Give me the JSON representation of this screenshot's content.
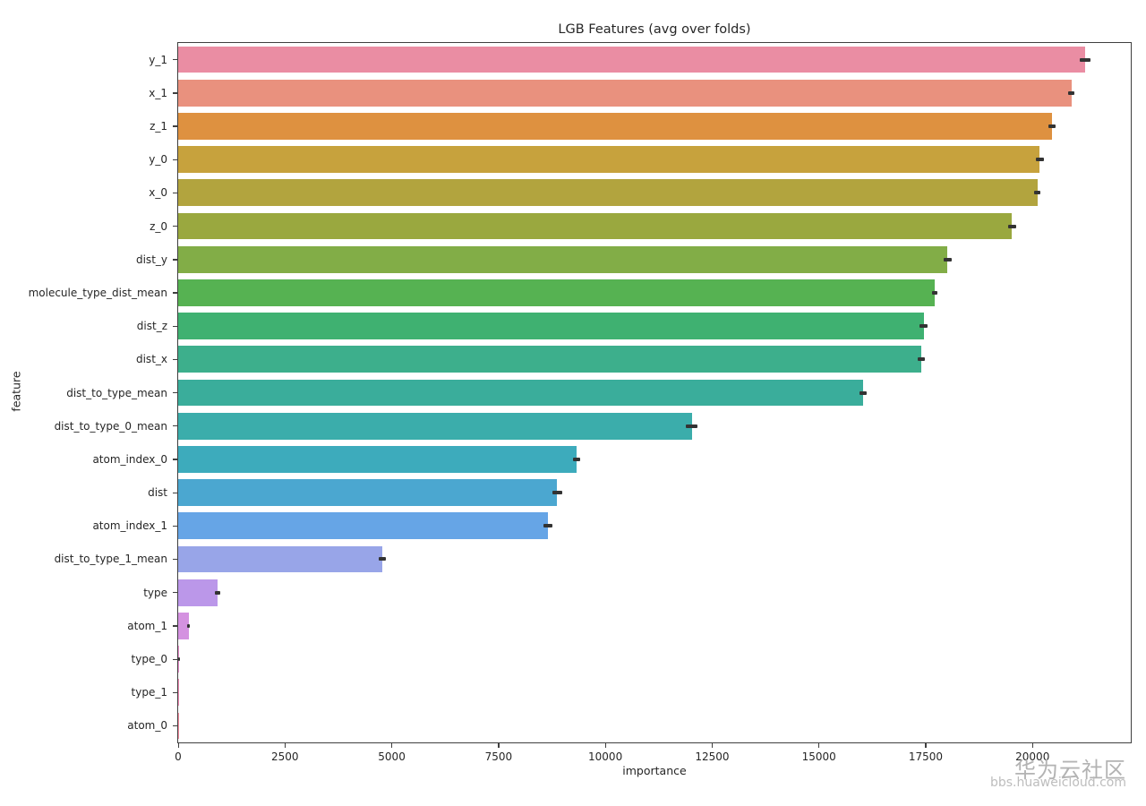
{
  "chart_data": {
    "type": "bar",
    "orientation": "horizontal",
    "title": "LGB Features (avg over folds)",
    "xlabel": "importance",
    "ylabel": "feature",
    "xlim": [
      0,
      22300
    ],
    "x_ticks": [
      0,
      2500,
      5000,
      7500,
      10000,
      12500,
      15000,
      17500,
      20000
    ],
    "grid": false,
    "legend_position": "none",
    "bar_width_fraction": 0.8,
    "error_bar_color": "#333333",
    "categories": [
      "y_1",
      "x_1",
      "z_1",
      "y_0",
      "x_0",
      "z_0",
      "dist_y",
      "molecule_type_dist_mean",
      "dist_z",
      "dist_x",
      "dist_to_type_mean",
      "dist_to_type_0_mean",
      "atom_index_0",
      "dist",
      "atom_index_1",
      "dist_to_type_1_mean",
      "type",
      "atom_1",
      "type_0",
      "type_1",
      "atom_0"
    ],
    "values": [
      21230,
      20910,
      20460,
      20170,
      20110,
      19520,
      18010,
      17710,
      17450,
      17390,
      16030,
      12020,
      9330,
      8870,
      8660,
      4780,
      915,
      245,
      20,
      5,
      3
    ],
    "errors": [
      120,
      80,
      80,
      100,
      80,
      95,
      90,
      70,
      90,
      80,
      90,
      140,
      90,
      115,
      100,
      80,
      60,
      25,
      20,
      0,
      0
    ],
    "bar_colors": [
      "#ea8da3",
      "#e9917e",
      "#de9140",
      "#c7a23d",
      "#b2a43e",
      "#9aa83f",
      "#82ad47",
      "#56b252",
      "#3fb171",
      "#3daf8c",
      "#3aad9b",
      "#3badab",
      "#3dabbc",
      "#4ba7d0",
      "#66a5e6",
      "#98a5e8",
      "#bb97e9",
      "#d492e0",
      "#ec8fcd",
      "#f28bb5",
      "#f58a9f"
    ]
  },
  "watermark": {
    "line1": "华为云社区",
    "line2": "bbs.huaweicloud.com"
  }
}
